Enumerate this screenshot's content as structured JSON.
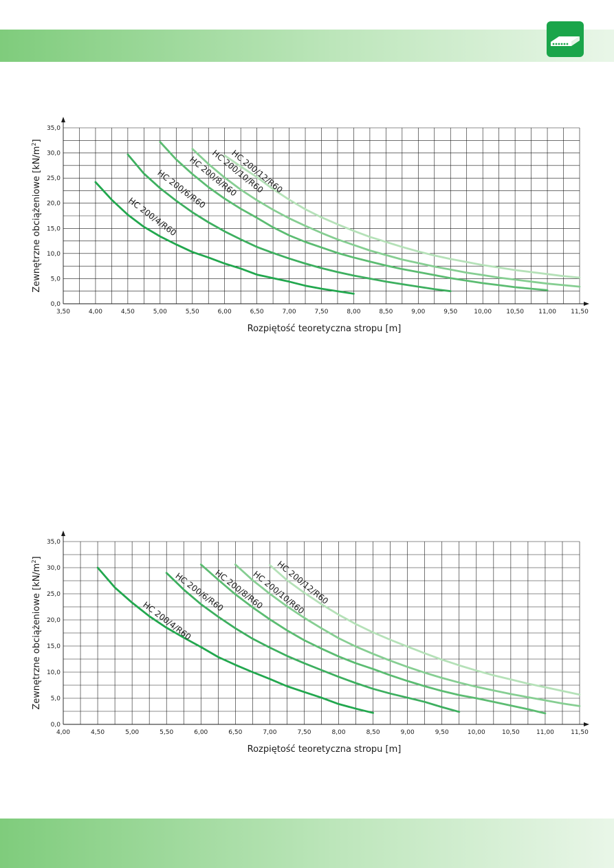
{
  "logo": {
    "icon": "hollow-core-slab-icon",
    "color": "#1aa54a"
  },
  "chart_data": [
    {
      "type": "line",
      "xlabel": "Rozpiętość teoretyczna stropu [m]",
      "ylabel": "Zewnętrzne obciążeniowe [kN/m²]",
      "ylabel_parts": [
        "Zewnętrzne obciążeniowe [kN/m",
        "2",
        "]"
      ],
      "xlim": [
        3.5,
        11.5
      ],
      "ylim": [
        0,
        35
      ],
      "x_step": 0.25,
      "y_step": 2.5,
      "grid": true,
      "x_ticks": [
        "3,50",
        "4,00",
        "4,50",
        "5,00",
        "5,50",
        "6,00",
        "6,50",
        "7,00",
        "7,50",
        "8,00",
        "8,50",
        "9,00",
        "9,50",
        "10,00",
        "10,50",
        "11,00",
        "11,50"
      ],
      "x_tick_values": [
        3.5,
        4,
        4.5,
        5,
        5.5,
        6,
        6.5,
        7,
        7.5,
        8,
        8.5,
        9,
        9.5,
        10,
        10.5,
        11,
        11.5
      ],
      "y_ticks": [
        "0,0",
        "5,0",
        "10,0",
        "15,0",
        "20,0",
        "25,0",
        "30,0",
        "35,0"
      ],
      "y_tick_values": [
        0,
        5,
        10,
        15,
        20,
        25,
        30,
        35
      ],
      "series": [
        {
          "name": "HC 200/4/R60",
          "color": "#22a74e",
          "label_anchor": [
            4.5,
            20.3
          ],
          "label_angle": 37,
          "points": [
            [
              4.0,
              24.2
            ],
            [
              4.25,
              20.7
            ],
            [
              4.5,
              17.7
            ],
            [
              4.75,
              15.3
            ],
            [
              5.0,
              13.4
            ],
            [
              5.25,
              11.8
            ],
            [
              5.5,
              10.3
            ],
            [
              5.75,
              9.2
            ],
            [
              6.0,
              8.0
            ],
            [
              6.25,
              7.0
            ],
            [
              6.5,
              5.8
            ],
            [
              6.75,
              5.1
            ],
            [
              7.0,
              4.4
            ],
            [
              7.25,
              3.6
            ],
            [
              7.5,
              3.0
            ],
            [
              7.75,
              2.5
            ],
            [
              8.0,
              2.0
            ]
          ]
        },
        {
          "name": "HC 200/6/R60",
          "color": "#3daf5f",
          "label_anchor": [
            4.95,
            25.8
          ],
          "label_angle": 37,
          "points": [
            [
              4.5,
              29.7
            ],
            [
              4.75,
              25.9
            ],
            [
              5.0,
              23.0
            ],
            [
              5.25,
              20.5
            ],
            [
              5.5,
              18.2
            ],
            [
              5.75,
              16.2
            ],
            [
              6.0,
              14.4
            ],
            [
              6.25,
              12.8
            ],
            [
              6.5,
              11.3
            ],
            [
              6.75,
              10.1
            ],
            [
              7.0,
              9.0
            ],
            [
              7.25,
              8.0
            ],
            [
              7.5,
              7.1
            ],
            [
              7.75,
              6.3
            ],
            [
              8.0,
              5.6
            ],
            [
              8.25,
              5.0
            ],
            [
              8.5,
              4.4
            ],
            [
              8.75,
              3.9
            ],
            [
              9.0,
              3.4
            ],
            [
              9.25,
              2.9
            ],
            [
              9.5,
              2.5
            ]
          ]
        },
        {
          "name": "HC 200/8/R60",
          "color": "#5cbc72",
          "label_anchor": [
            5.45,
            28.5
          ],
          "label_angle": 39,
          "points": [
            [
              5.0,
              32.2
            ],
            [
              5.25,
              28.7
            ],
            [
              5.5,
              25.8
            ],
            [
              5.75,
              23.2
            ],
            [
              6.0,
              20.9
            ],
            [
              6.25,
              18.9
            ],
            [
              6.5,
              17.1
            ],
            [
              6.75,
              15.2
            ],
            [
              7.0,
              13.6
            ],
            [
              7.25,
              12.3
            ],
            [
              7.5,
              11.2
            ],
            [
              7.75,
              10.1
            ],
            [
              8.0,
              9.2
            ],
            [
              8.25,
              8.4
            ],
            [
              8.5,
              7.6
            ],
            [
              8.75,
              6.9
            ],
            [
              9.0,
              6.3
            ],
            [
              9.25,
              5.7
            ],
            [
              9.5,
              5.1
            ],
            [
              9.75,
              4.6
            ],
            [
              10.0,
              4.1
            ],
            [
              10.25,
              3.7
            ],
            [
              10.5,
              3.3
            ],
            [
              10.75,
              3.0
            ],
            [
              11.0,
              2.7
            ]
          ]
        },
        {
          "name": "HC 200/10/R60",
          "color": "#86ce92",
          "label_anchor": [
            5.8,
            29.8
          ],
          "label_angle": 39,
          "points": [
            [
              5.5,
              30.8
            ],
            [
              5.75,
              27.8
            ],
            [
              6.0,
              25.1
            ],
            [
              6.25,
              22.7
            ],
            [
              6.5,
              20.6
            ],
            [
              6.75,
              18.7
            ],
            [
              7.0,
              17.0
            ],
            [
              7.25,
              15.5
            ],
            [
              7.5,
              14.1
            ],
            [
              7.75,
              12.8
            ],
            [
              8.0,
              11.7
            ],
            [
              8.25,
              10.6
            ],
            [
              8.5,
              9.7
            ],
            [
              8.75,
              8.8
            ],
            [
              9.0,
              8.1
            ],
            [
              9.25,
              7.4
            ],
            [
              9.5,
              6.8
            ],
            [
              9.75,
              6.2
            ],
            [
              10.0,
              5.7
            ],
            [
              10.25,
              5.2
            ],
            [
              10.5,
              4.8
            ],
            [
              10.75,
              4.4
            ],
            [
              11.0,
              4.0
            ],
            [
              11.25,
              3.7
            ],
            [
              11.5,
              3.4
            ]
          ]
        },
        {
          "name": "HC 200/12/R60",
          "color": "#b5e1b8",
          "label_anchor": [
            6.1,
            29.8
          ],
          "label_angle": 39,
          "points": [
            [
              6.0,
              29.5
            ],
            [
              6.25,
              27.3
            ],
            [
              6.5,
              25.2
            ],
            [
              6.75,
              22.8
            ],
            [
              7.0,
              20.7
            ],
            [
              7.25,
              18.8
            ],
            [
              7.5,
              17.2
            ],
            [
              7.75,
              15.8
            ],
            [
              8.0,
              14.5
            ],
            [
              8.25,
              13.3
            ],
            [
              8.5,
              12.3
            ],
            [
              8.75,
              11.3
            ],
            [
              9.0,
              10.4
            ],
            [
              9.25,
              9.6
            ],
            [
              9.5,
              8.9
            ],
            [
              9.75,
              8.3
            ],
            [
              10.0,
              7.7
            ],
            [
              10.25,
              7.2
            ],
            [
              10.5,
              6.7
            ],
            [
              10.75,
              6.3
            ],
            [
              11.0,
              5.9
            ],
            [
              11.25,
              5.5
            ],
            [
              11.5,
              5.2
            ]
          ]
        }
      ]
    },
    {
      "type": "line",
      "xlabel": "Rozpiętość teoretyczna stropu [m]",
      "ylabel": "Zewnętrzne obciążeniowe [kN/m²]",
      "ylabel_parts": [
        "Zewnętrzne obciążeniowe [kN/m",
        "2",
        "]"
      ],
      "xlim": [
        4.0,
        11.5
      ],
      "ylim": [
        0,
        35
      ],
      "x_step": 0.25,
      "y_step": 2.5,
      "grid": true,
      "x_ticks": [
        "4,00",
        "4,50",
        "5,00",
        "5,50",
        "6,00",
        "6,50",
        "7,00",
        "7,50",
        "8,00",
        "8,50",
        "9,00",
        "9,50",
        "10,00",
        "10,50",
        "11,00",
        "11,50"
      ],
      "x_tick_values": [
        4,
        4.5,
        5,
        5.5,
        6,
        6.5,
        7,
        7.5,
        8,
        8.5,
        9,
        9.5,
        10,
        10.5,
        11,
        11.5
      ],
      "y_ticks": [
        "0,0",
        "5,0",
        "10,0",
        "15,0",
        "20,0",
        "25,0",
        "30,0",
        "35,0"
      ],
      "y_tick_values": [
        0,
        5,
        10,
        15,
        20,
        25,
        30,
        35
      ],
      "series": [
        {
          "name": "HC 200/4/R60",
          "color": "#22a74e",
          "label_anchor": [
            5.15,
            22.7
          ],
          "label_angle": 37,
          "points": [
            [
              4.5,
              30.0
            ],
            [
              4.75,
              26.2
            ],
            [
              5.0,
              23.3
            ],
            [
              5.25,
              20.7
            ],
            [
              5.5,
              18.5
            ],
            [
              5.75,
              16.6
            ],
            [
              6.0,
              14.8
            ],
            [
              6.25,
              12.9
            ],
            [
              6.5,
              11.4
            ],
            [
              6.75,
              10.0
            ],
            [
              7.0,
              8.7
            ],
            [
              7.25,
              7.3
            ],
            [
              7.5,
              6.2
            ],
            [
              7.75,
              5.1
            ],
            [
              8.0,
              3.9
            ],
            [
              8.25,
              3.0
            ],
            [
              8.5,
              2.2
            ]
          ]
        },
        {
          "name": "HC 200/6/R60",
          "color": "#3daf5f",
          "label_anchor": [
            5.62,
            28.2
          ],
          "label_angle": 37,
          "points": [
            [
              5.5,
              29.0
            ],
            [
              5.75,
              25.8
            ],
            [
              6.0,
              23.0
            ],
            [
              6.25,
              20.6
            ],
            [
              6.5,
              18.4
            ],
            [
              6.75,
              16.4
            ],
            [
              7.0,
              14.7
            ],
            [
              7.25,
              13.1
            ],
            [
              7.5,
              11.7
            ],
            [
              7.75,
              10.4
            ],
            [
              8.0,
              9.1
            ],
            [
              8.25,
              7.9
            ],
            [
              8.5,
              6.8
            ],
            [
              8.75,
              5.9
            ],
            [
              9.0,
              5.1
            ],
            [
              9.25,
              4.3
            ],
            [
              9.5,
              3.3
            ],
            [
              9.75,
              2.4
            ]
          ]
        },
        {
          "name": "HC 200/8/R60",
          "color": "#5cbc72",
          "label_anchor": [
            6.2,
            28.8
          ],
          "label_angle": 38,
          "points": [
            [
              6.0,
              30.6
            ],
            [
              6.25,
              27.7
            ],
            [
              6.5,
              24.9
            ],
            [
              6.75,
              22.4
            ],
            [
              7.0,
              20.1
            ],
            [
              7.25,
              18.0
            ],
            [
              7.5,
              16.1
            ],
            [
              7.75,
              14.5
            ],
            [
              8.0,
              13.0
            ],
            [
              8.25,
              11.7
            ],
            [
              8.5,
              10.6
            ],
            [
              8.75,
              9.4
            ],
            [
              9.0,
              8.3
            ],
            [
              9.25,
              7.3
            ],
            [
              9.5,
              6.4
            ],
            [
              9.75,
              5.6
            ],
            [
              10.0,
              5.0
            ],
            [
              10.25,
              4.3
            ],
            [
              10.5,
              3.6
            ],
            [
              10.75,
              2.9
            ],
            [
              11.0,
              2.1
            ]
          ]
        },
        {
          "name": "HC 200/10/R60",
          "color": "#86ce92",
          "label_anchor": [
            6.75,
            28.6
          ],
          "label_angle": 39,
          "points": [
            [
              6.5,
              30.6
            ],
            [
              6.75,
              27.6
            ],
            [
              7.0,
              25.0
            ],
            [
              7.25,
              22.6
            ],
            [
              7.5,
              20.4
            ],
            [
              7.75,
              18.4
            ],
            [
              8.0,
              16.5
            ],
            [
              8.25,
              14.9
            ],
            [
              8.5,
              13.5
            ],
            [
              8.75,
              12.2
            ],
            [
              9.0,
              11.0
            ],
            [
              9.25,
              9.9
            ],
            [
              9.5,
              8.9
            ],
            [
              9.75,
              8.0
            ],
            [
              10.0,
              7.2
            ],
            [
              10.25,
              6.5
            ],
            [
              10.5,
              5.8
            ],
            [
              10.75,
              5.2
            ],
            [
              11.0,
              4.6
            ],
            [
              11.25,
              4.0
            ],
            [
              11.5,
              3.5
            ]
          ]
        },
        {
          "name": "HC 200/12/R60",
          "color": "#b5e1b8",
          "label_anchor": [
            7.1,
            30.5
          ],
          "label_angle": 39,
          "points": [
            [
              7.0,
              30.5
            ],
            [
              7.25,
              27.6
            ],
            [
              7.5,
              25.2
            ],
            [
              7.75,
              23.0
            ],
            [
              8.0,
              21.0
            ],
            [
              8.25,
              19.2
            ],
            [
              8.5,
              17.6
            ],
            [
              8.75,
              16.2
            ],
            [
              9.0,
              14.9
            ],
            [
              9.25,
              13.6
            ],
            [
              9.5,
              12.4
            ],
            [
              9.75,
              11.3
            ],
            [
              10.0,
              10.3
            ],
            [
              10.25,
              9.4
            ],
            [
              10.5,
              8.6
            ],
            [
              10.75,
              7.8
            ],
            [
              11.0,
              7.1
            ],
            [
              11.25,
              6.4
            ],
            [
              11.5,
              5.7
            ]
          ]
        }
      ]
    }
  ]
}
